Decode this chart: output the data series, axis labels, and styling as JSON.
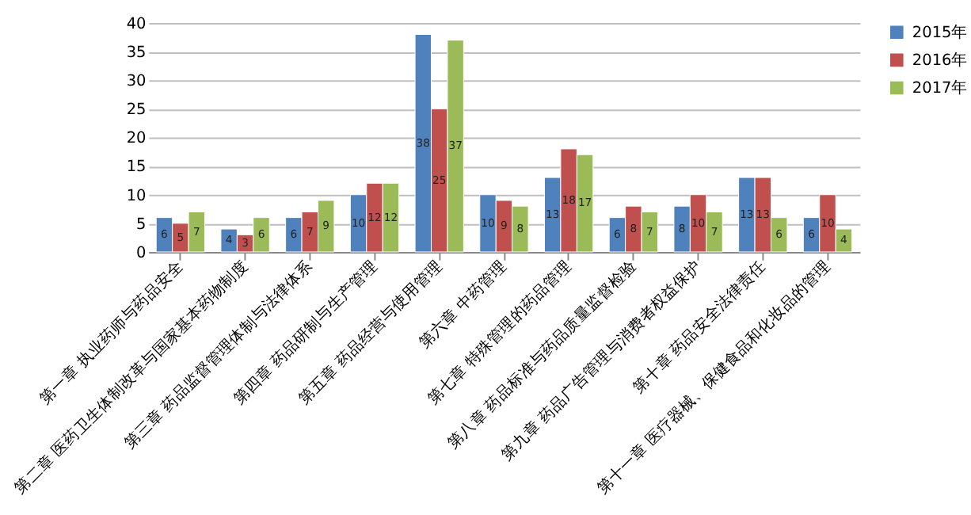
{
  "chart_data": {
    "type": "bar",
    "categories": [
      "第一章 执业药师与药品安全",
      "第二章 医药卫生体制改革与国家基本药物制度",
      "第三章 药品监督管理体制与法律体系",
      "第四章 药品研制与生产管理",
      "第五章 药品经营与使用管理",
      "第六章 中药管理",
      "第七章 特殊管理的药品管理",
      "第八章 药品标准与药品质量监督检验",
      "第九章 药品广告管理与消费者权益保护",
      "第十章 药品安全法律责任",
      "第十一章 医疗器械、保健食品和化妆品的管理"
    ],
    "series": [
      {
        "name": "2015年",
        "color": "#4f81bd",
        "values": [
          6,
          4,
          6,
          10,
          38,
          10,
          13,
          6,
          8,
          13,
          6
        ]
      },
      {
        "name": "2016年",
        "color": "#c0504d",
        "values": [
          5,
          3,
          7,
          12,
          25,
          9,
          18,
          8,
          10,
          13,
          10
        ]
      },
      {
        "name": "2017年",
        "color": "#9bbb59",
        "values": [
          7,
          6,
          9,
          12,
          37,
          8,
          17,
          7,
          7,
          6,
          4
        ]
      }
    ],
    "ylim": [
      0,
      40
    ],
    "yticks": [
      0,
      5,
      10,
      15,
      20,
      25,
      30,
      35,
      40
    ],
    "grid": "y",
    "legend": "right",
    "data_labels": true
  }
}
